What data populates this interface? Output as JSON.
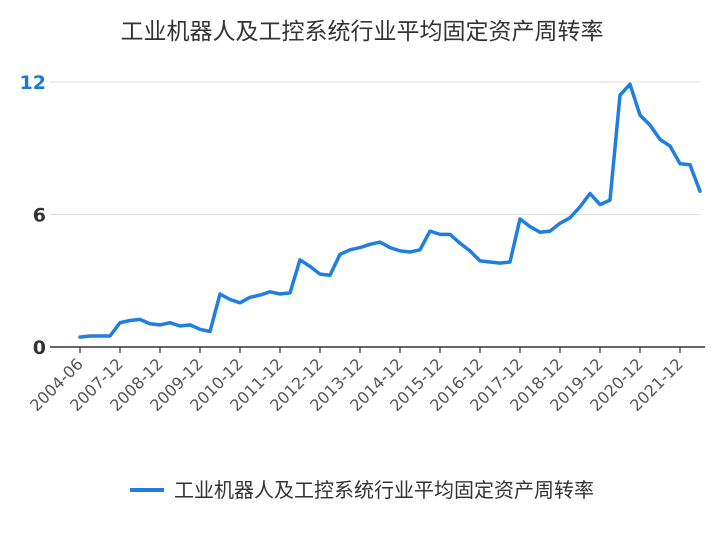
{
  "chart_data": {
    "type": "line",
    "title": "工业机器人及工控系统行业平均固定资产周转率",
    "xlabel": "",
    "ylabel": "",
    "ylim": [
      0,
      12
    ],
    "yticks": [
      "0",
      "6",
      "12"
    ],
    "grid": true,
    "legend_position": "bottom",
    "x_tick_labels": [
      "2004-06",
      "2007-12",
      "2008-12",
      "2009-12",
      "2010-12",
      "2011-12",
      "2012-12",
      "2013-12",
      "2014-12",
      "2015-12",
      "2016-12",
      "2017-12",
      "2018-12",
      "2019-12",
      "2020-12",
      "2021-12"
    ],
    "series": [
      {
        "name": "工业机器人及工控系统行业平均固定资产周转率",
        "color": "#1e7fe0",
        "values": [
          0.45,
          0.5,
          0.5,
          0.5,
          1.1,
          1.2,
          1.25,
          1.05,
          1.0,
          1.1,
          0.95,
          1.0,
          0.8,
          0.7,
          2.4,
          2.15,
          2.0,
          2.25,
          2.35,
          2.5,
          2.4,
          2.45,
          3.95,
          3.65,
          3.3,
          3.25,
          4.2,
          4.4,
          4.5,
          4.65,
          4.75,
          4.5,
          4.35,
          4.3,
          4.4,
          5.25,
          5.1,
          5.1,
          4.7,
          4.35,
          3.9,
          3.85,
          3.8,
          3.85,
          5.8,
          5.45,
          5.2,
          5.25,
          5.6,
          5.85,
          6.35,
          6.95,
          6.45,
          6.65,
          11.4,
          11.9,
          10.5,
          10.05,
          9.4,
          9.1,
          8.3,
          8.25,
          7.05
        ]
      }
    ]
  }
}
